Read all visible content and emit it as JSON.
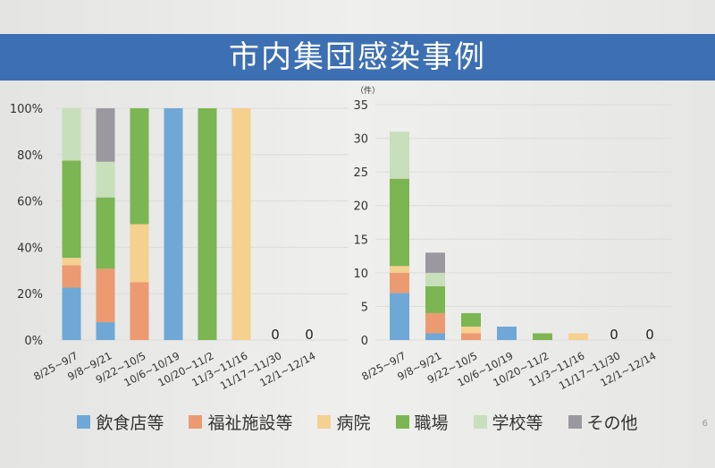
{
  "title": "市内集団感染事例",
  "page_number": "6",
  "chart_data": [
    {
      "type": "bar",
      "stacked": "percent",
      "title": "",
      "ylabel": "",
      "ylim": [
        0,
        100
      ],
      "yticks": [
        "0%",
        "20%",
        "40%",
        "60%",
        "80%",
        "100%"
      ],
      "categories": [
        "8/25~9/7",
        "9/8~9/21",
        "9/22~10/5",
        "10/6~10/19",
        "10/20~11/2",
        "11/3~11/16",
        "11/17~11/30",
        "12/1~12/14"
      ],
      "zero_labels": [
        "",
        "",
        "",
        "",
        "",
        "",
        "0",
        "0"
      ]
    },
    {
      "type": "bar",
      "stacked": "count",
      "ylabel": "（件）",
      "ylim": [
        0,
        35
      ],
      "yticks": [
        "0",
        "5",
        "10",
        "15",
        "20",
        "25",
        "30",
        "35"
      ],
      "categories": [
        "8/25~9/7",
        "9/8~9/21",
        "9/22~10/5",
        "10/6~10/19",
        "10/20~11/2",
        "11/3~11/16",
        "11/17~11/30",
        "12/1~12/14"
      ],
      "zero_labels": [
        "",
        "",
        "",
        "",
        "",
        "",
        "0",
        "0"
      ]
    }
  ],
  "series": [
    {
      "name": "飲食店等",
      "color": "#6fa8d6",
      "values": [
        7,
        1,
        0,
        2,
        0,
        0,
        0,
        0
      ]
    },
    {
      "name": "福祉施設等",
      "color": "#ec9a72",
      "values": [
        3,
        3,
        1,
        0,
        0,
        0,
        0,
        0
      ]
    },
    {
      "name": "病院",
      "color": "#f5d08f",
      "values": [
        1,
        0,
        1,
        0,
        0,
        1,
        0,
        0
      ]
    },
    {
      "name": "職場",
      "color": "#7bb652",
      "values": [
        13,
        4,
        2,
        0,
        1,
        0,
        0,
        0
      ]
    },
    {
      "name": "学校等",
      "color": "#c8dfbb",
      "values": [
        7,
        2,
        0,
        0,
        0,
        0,
        0,
        0
      ]
    },
    {
      "name": "その他",
      "color": "#9b989f",
      "values": [
        0,
        3,
        0,
        0,
        0,
        0,
        0,
        0
      ]
    }
  ]
}
